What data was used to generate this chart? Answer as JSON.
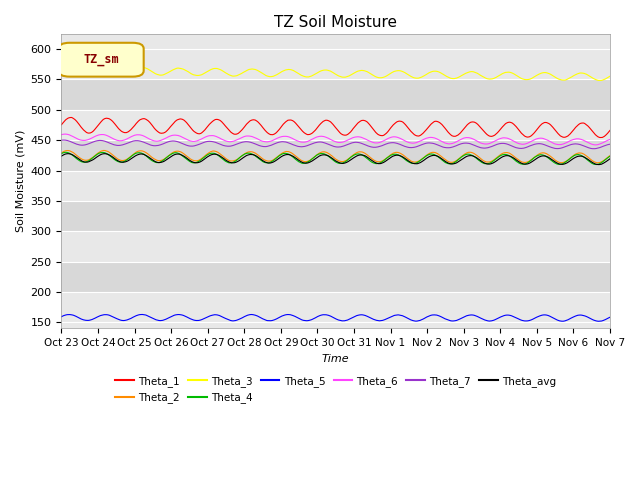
{
  "title": "TZ Soil Moisture",
  "xlabel": "Time",
  "ylabel": "Soil Moisture (mV)",
  "ylim": [
    140,
    625
  ],
  "xlim": [
    0,
    360
  ],
  "bg_color": "#e8e8e8",
  "bg_color2": "#d8d8d8",
  "series": [
    {
      "name": "Theta_1",
      "color": "#ff0000",
      "base": 475,
      "amplitude": 12,
      "trend": -0.025,
      "phase": 0.0,
      "noise": 1.5
    },
    {
      "name": "Theta_2",
      "color": "#ff8c00",
      "base": 425,
      "amplitude": 8,
      "trend": -0.012,
      "phase": 0.5,
      "noise": 1.0
    },
    {
      "name": "Theta_3",
      "color": "#ffff00",
      "base": 565,
      "amplitude": 6,
      "trend": -0.03,
      "phase": 0.2,
      "noise": 1.0
    },
    {
      "name": "Theta_4",
      "color": "#00bb00",
      "base": 422,
      "amplitude": 8,
      "trend": -0.012,
      "phase": 0.8,
      "noise": 1.0
    },
    {
      "name": "Theta_5",
      "color": "#0000ff",
      "base": 158,
      "amplitude": 5,
      "trend": -0.003,
      "phase": 0.3,
      "noise": 0.8
    },
    {
      "name": "Theta_6",
      "color": "#ff44ff",
      "base": 455,
      "amplitude": 5,
      "trend": -0.022,
      "phase": 0.9,
      "noise": 0.8
    },
    {
      "name": "Theta_7",
      "color": "#9933cc",
      "base": 446,
      "amplitude": 4,
      "trend": -0.018,
      "phase": 1.2,
      "noise": 0.6
    },
    {
      "name": "Theta_avg",
      "color": "#000000",
      "base": 421,
      "amplitude": 7,
      "trend": -0.012,
      "phase": 0.4,
      "noise": 0.8
    }
  ],
  "tick_labels": [
    "Oct 23",
    "Oct 24",
    "Oct 25",
    "Oct 26",
    "Oct 27",
    "Oct 28",
    "Oct 29",
    "Oct 30",
    "Oct 31",
    "Nov 1",
    "Nov 2",
    "Nov 3",
    "Nov 4",
    "Nov 5",
    "Nov 6",
    "Nov 7"
  ],
  "tick_positions": [
    0,
    24,
    48,
    72,
    96,
    120,
    144,
    168,
    192,
    216,
    240,
    264,
    288,
    312,
    336,
    360
  ],
  "label_box": "TZ_sm",
  "label_box_facecolor": "#ffffcc",
  "label_box_edgecolor": "#cc9900",
  "label_text_color": "#880000"
}
